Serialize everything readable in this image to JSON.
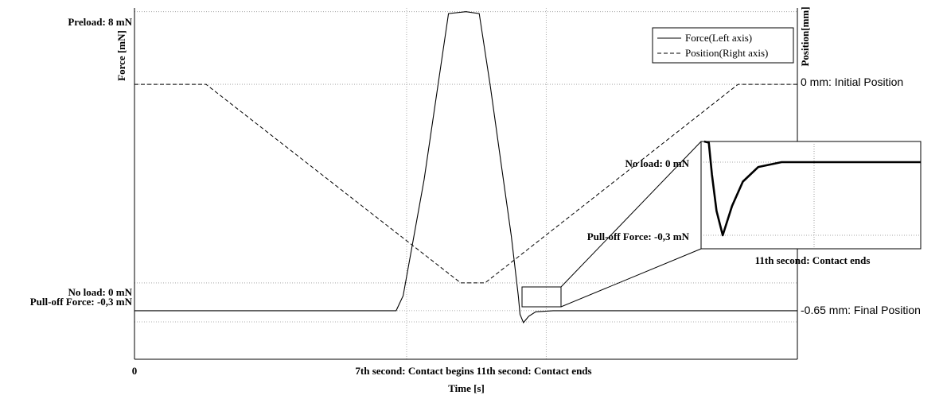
{
  "chart_data": {
    "type": "line",
    "title": "",
    "xlabel": "Time [s]",
    "ylabel_left": "Force [mN]",
    "ylabel_right": "Position[mm]",
    "xlim": [
      0,
      19
    ],
    "ylim_left": [
      -1.3,
      8.1
    ],
    "ylim_right": [
      -0.9,
      0.25
    ],
    "grid": true,
    "legend_position": "top-right",
    "legend": [
      "Force(Left axis)",
      "Position(Right axis)"
    ],
    "x_tick_labels": [
      {
        "x": 0,
        "label": "0"
      },
      {
        "x": 7.8,
        "label": "7th second: Contact begins 11th second: Contact ends"
      }
    ],
    "left_tick_labels": [
      {
        "y": 8,
        "label": "Preload: 8 mN"
      },
      {
        "y": 0,
        "label": "No load: 0 mN"
      },
      {
        "y": -0.3,
        "label": "Pull-off Force: -0,3 mN"
      }
    ],
    "right_tick_labels": [
      {
        "y": 0,
        "label": "0 mm: Initial Position"
      },
      {
        "y": -0.65,
        "label": "-0.65 mm: Final Position"
      }
    ],
    "series": [
      {
        "name": "Force(Left axis)",
        "axis": "left",
        "style": "solid",
        "x": [
          0,
          7.5,
          7.7,
          8.3,
          9.0,
          9.5,
          9.88,
          10.2,
          10.5,
          10.8,
          11.0,
          11.05,
          11.15,
          11.3,
          11.5,
          12.0,
          19
        ],
        "y": [
          0,
          0,
          0.4,
          3.5,
          7.95,
          8.0,
          7.95,
          6.0,
          4.0,
          2.0,
          0.4,
          -0.1,
          -0.32,
          -0.15,
          -0.03,
          0,
          0
        ]
      },
      {
        "name": "Position(Right axis)",
        "axis": "right",
        "style": "dashed",
        "x": [
          0,
          2.05,
          9.35,
          10.05,
          17.3,
          19
        ],
        "y": [
          0,
          0,
          -0.65,
          -0.65,
          0,
          0
        ]
      }
    ],
    "inset": {
      "xlabel": "11th second: Contact ends",
      "tick_labels": [
        {
          "y": 0,
          "label": "No load: 0 mN"
        },
        {
          "y": -0.3,
          "label": "Pull-off Force: -0,3 mN"
        }
      ],
      "source_box": {
        "xlim": [
          11.0,
          12.0
        ],
        "ylim": [
          -0.5,
          0.15
        ]
      }
    }
  }
}
